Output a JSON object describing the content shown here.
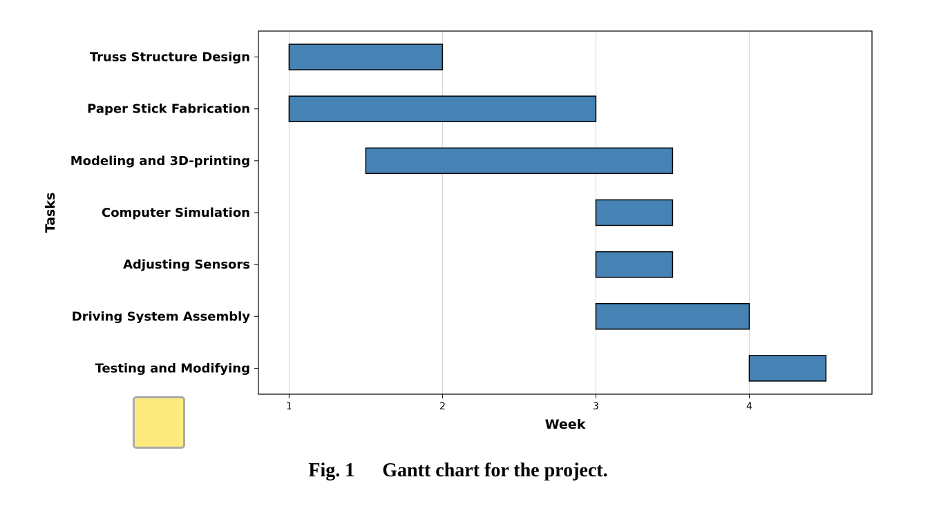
{
  "chart_data": {
    "type": "gantt",
    "title": "",
    "xlabel": "Week",
    "ylabel": "Tasks",
    "xlim": [
      0.8,
      4.8
    ],
    "x_ticks": [
      1,
      2,
      3,
      4
    ],
    "grid": "vertical",
    "bar_color": "#4682B4",
    "tasks": [
      {
        "name": "Truss Structure Design",
        "start": 1.0,
        "end": 2.0
      },
      {
        "name": "Paper Stick Fabrication",
        "start": 1.0,
        "end": 3.0
      },
      {
        "name": "Modeling and 3D-printing",
        "start": 1.5,
        "end": 3.5
      },
      {
        "name": "Computer Simulation",
        "start": 3.0,
        "end": 3.5
      },
      {
        "name": "Adjusting Sensors",
        "start": 3.0,
        "end": 3.5
      },
      {
        "name": "Driving System Assembly",
        "start": 3.0,
        "end": 4.0
      },
      {
        "name": "Testing and Modifying",
        "start": 4.0,
        "end": 4.5
      }
    ]
  },
  "caption": {
    "figure_number": "Fig. 1",
    "text": "Gantt chart for the project."
  },
  "swatch": {
    "color": "#FDEB7E"
  }
}
